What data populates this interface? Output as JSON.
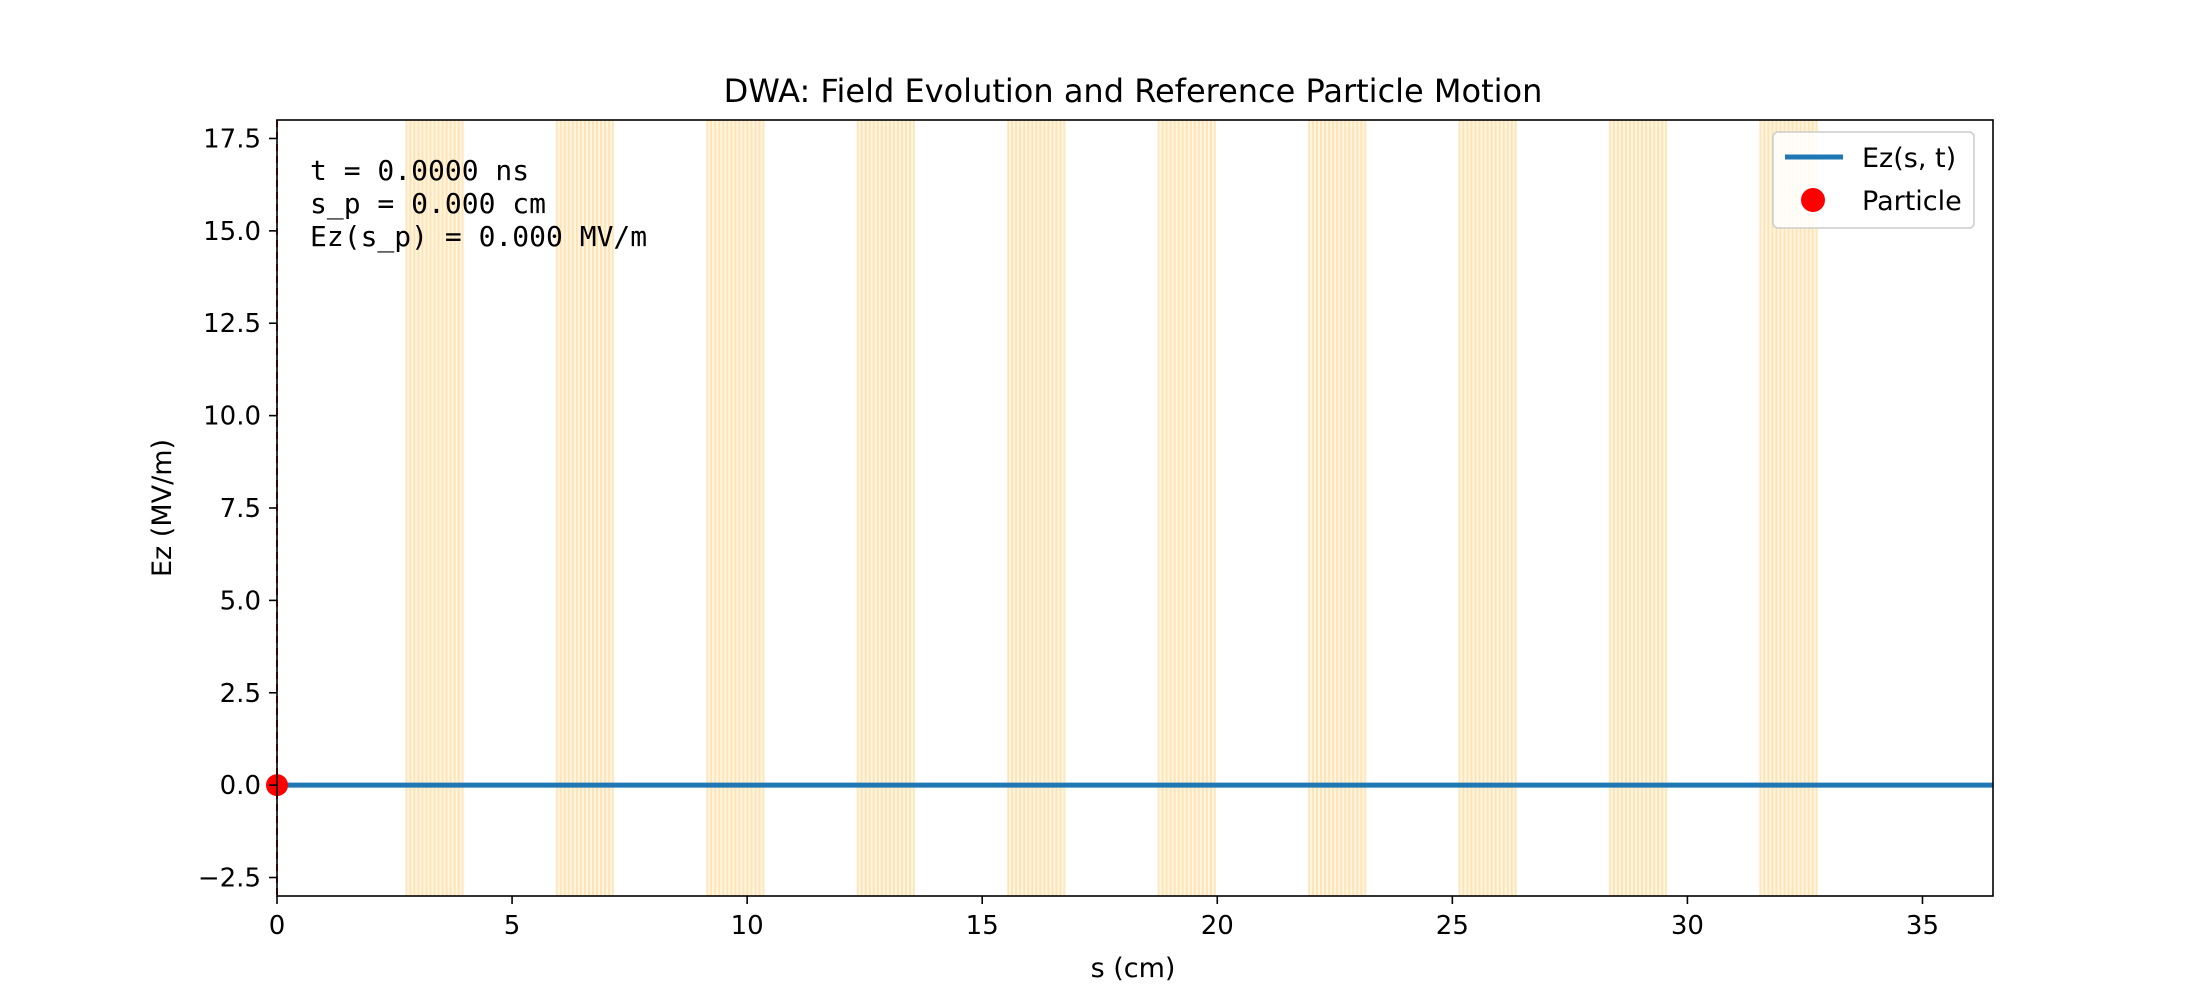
{
  "chart_data": {
    "type": "line",
    "title": "DWA: Field Evolution and Reference Particle Motion",
    "xlabel": "s (cm)",
    "ylabel": "Ez (MV/m)",
    "xlim": [
      0,
      36.5
    ],
    "ylim": [
      -3.0,
      18.0
    ],
    "xticks": [
      0,
      5,
      10,
      15,
      20,
      25,
      30,
      35
    ],
    "xtick_labels": [
      "0",
      "5",
      "10",
      "15",
      "20",
      "25",
      "30",
      "35"
    ],
    "yticks": [
      -2.5,
      0.0,
      2.5,
      5.0,
      7.5,
      10.0,
      12.5,
      15.0,
      17.5
    ],
    "ytick_labels": [
      "−2.5",
      "0.0",
      "2.5",
      "5.0",
      "7.5",
      "10.0",
      "12.5",
      "15.0",
      "17.5"
    ],
    "grid": false,
    "legend_position": "top-right",
    "series": [
      {
        "name": "Ez(s, t)",
        "kind": "line",
        "color": "#1f77b4",
        "x": [
          0,
          36.5
        ],
        "y": [
          0.0,
          0.0
        ]
      },
      {
        "name": "Particle",
        "kind": "marker",
        "color": "#ff0000",
        "x": [
          0.0
        ],
        "y": [
          0.0
        ]
      }
    ],
    "shaded_regions": {
      "color": "#ffa500",
      "ranges": [
        [
          2.75,
          3.95
        ],
        [
          5.95,
          7.15
        ],
        [
          9.15,
          10.35
        ],
        [
          12.35,
          13.55
        ],
        [
          15.55,
          16.75
        ],
        [
          18.75,
          19.95
        ],
        [
          21.95,
          23.15
        ],
        [
          25.15,
          26.35
        ],
        [
          28.35,
          29.55
        ],
        [
          31.55,
          32.75
        ]
      ]
    },
    "reference_line": {
      "x": 0.0,
      "color": "#d62728",
      "style": "dashed"
    },
    "annotations": {
      "line1": "t = 0.0000 ns",
      "line2": "s_p = 0.000 cm",
      "line3": "Ez(s_p) = 0.000 MV/m"
    }
  }
}
